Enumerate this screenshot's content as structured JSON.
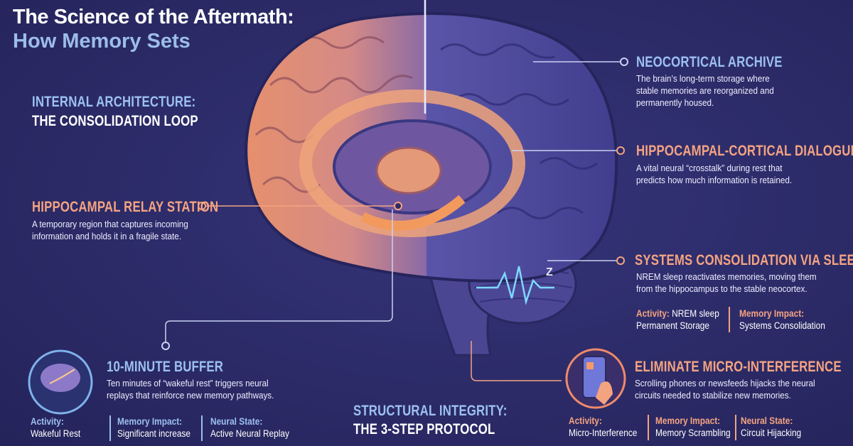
{
  "header": {
    "title": "The Science of the Aftermath:",
    "subtitle": "How Memory Sets"
  },
  "colors": {
    "background": "#2c2b68",
    "blue_accent": "#9cc0f0",
    "orange_accent": "#f4a381"
  },
  "internal_architecture": {
    "line1": "INTERNAL ARCHITECTURE:",
    "line2": "THE CONSOLIDATION LOOP"
  },
  "structural_integrity": {
    "line1": "STRUCTURAL INTEGRITY:",
    "line2": "THE 3-STEP PROTOCOL"
  },
  "callouts": {
    "neocortical": {
      "heading": "NEOCORTICAL ARCHIVE",
      "desc1": "The brain’s long-term storage where",
      "desc2": "stable memories are reorganized and",
      "desc3": "permanently housed."
    },
    "dialogue": {
      "heading": "HIPPOCAMPAL-CORTICAL DIALOGUE",
      "desc1": "A vital neural “crosstalk” during rest that",
      "desc2": "predicts how much information is retained."
    },
    "relay": {
      "heading": "HIPPOCAMPAL RELAY STATION",
      "desc1": "A temporary region that captures incoming",
      "desc2": "information and holds it in a fragile state."
    },
    "sleep": {
      "heading": "SYSTEMS CONSOLIDATION VIA SLEEP",
      "desc1": "NREM sleep reactivates memories, moving them",
      "desc2": "from the hippocampus to the stable neocortex.",
      "stats": [
        {
          "label": "Activity:",
          "inline": " NREM sleep",
          "value": "Permanent Storage"
        },
        {
          "label": "Memory Impact:",
          "value": "Systems Consolidation"
        }
      ]
    }
  },
  "steps": {
    "buffer": {
      "icon": "glowing-brain-icon",
      "heading": "10-MINUTE BUFFER",
      "desc1": "Ten minutes of “wakeful rest” triggers neural",
      "desc2": "replays that reinforce new memory pathways.",
      "stats": [
        {
          "label": "Activity:",
          "value": "Wakeful Rest"
        },
        {
          "label": "Memory Impact:",
          "value": "Significant increase"
        },
        {
          "label": "Neural State:",
          "value": "Active Neural Replay"
        }
      ]
    },
    "interference": {
      "icon": "smartphone-hand-icon",
      "heading": "ELIMINATE MICRO-INTERFERENCE",
      "desc1": "Scrolling phones or newsfeeds hijacks the neural",
      "desc2": "circuits needed to stabilize new memories.",
      "stats": [
        {
          "label": "Activity:",
          "value": "Micro-Interference"
        },
        {
          "label": "Memory Impact:",
          "value": "Memory Scrambling"
        },
        {
          "label": "Neural State:",
          "value": "Circuit Hijacking"
        }
      ]
    }
  },
  "brain_label": {
    "sleep_wave_letter": "Z"
  }
}
